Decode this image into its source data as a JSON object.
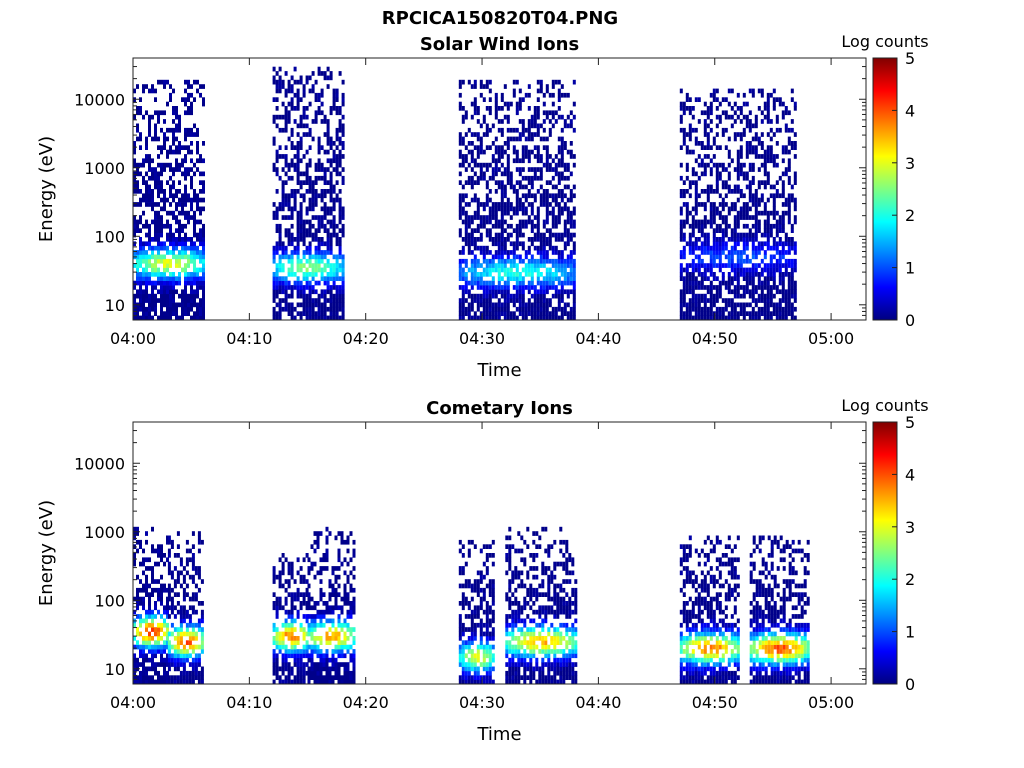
{
  "figure_title": "RPCICA150820T04.PNG",
  "colormap": [
    "#000080",
    "#0000ff",
    "#0080ff",
    "#00ffff",
    "#80ff80",
    "#ffff00",
    "#ff8000",
    "#ff0000",
    "#800000"
  ],
  "chart_data": [
    {
      "type": "heatmap",
      "title": "Solar Wind Ions",
      "xlabel": "Time",
      "ylabel": "Energy (eV)",
      "ylog": true,
      "ylim": [
        6,
        40000
      ],
      "xlim": [
        "04:00",
        "05:03"
      ],
      "xticks": [
        "04:00",
        "04:10",
        "04:20",
        "04:30",
        "04:40",
        "04:50",
        "05:00"
      ],
      "yticks": [
        "10",
        "100",
        "1000",
        "10000"
      ],
      "colorbar": {
        "label": "Log counts",
        "range": [
          0,
          5
        ],
        "ticks": [
          "0",
          "1",
          "2",
          "3",
          "4",
          "5"
        ]
      },
      "bursts": [
        {
          "start": "04:00",
          "end": "04:06",
          "emin": 6,
          "emax": 20000,
          "peak_log_counts": 3.0,
          "peak_energy": 40
        },
        {
          "start": "04:12",
          "end": "04:18",
          "emin": 6,
          "emax": 30000,
          "peak_log_counts": 2.5,
          "peak_energy": 35
        },
        {
          "start": "04:28",
          "end": "04:38",
          "emin": 6,
          "emax": 20000,
          "peak_log_counts": 2.0,
          "peak_energy": 30
        },
        {
          "start": "04:47",
          "end": "04:57",
          "emin": 6,
          "emax": 15000,
          "peak_log_counts": 1.0,
          "peak_energy": 50
        }
      ]
    },
    {
      "type": "heatmap",
      "title": "Cometary Ions",
      "xlabel": "Time",
      "ylabel": "Energy (eV)",
      "ylog": true,
      "ylim": [
        6,
        40000
      ],
      "xlim": [
        "04:00",
        "05:03"
      ],
      "xticks": [
        "04:00",
        "04:10",
        "04:20",
        "04:30",
        "04:40",
        "04:50",
        "05:00"
      ],
      "yticks": [
        "10",
        "100",
        "1000",
        "10000"
      ],
      "colorbar": {
        "label": "Log counts",
        "range": [
          0,
          5
        ],
        "ticks": [
          "0",
          "1",
          "2",
          "3",
          "4",
          "5"
        ]
      },
      "bursts": [
        {
          "start": "04:00",
          "end": "04:03",
          "emin": 6,
          "emax": 1200,
          "peak_log_counts": 4.2,
          "peak_energy": 35
        },
        {
          "start": "04:03",
          "end": "04:06",
          "emin": 6,
          "emax": 1000,
          "peak_log_counts": 4.0,
          "peak_energy": 25
        },
        {
          "start": "04:12",
          "end": "04:15",
          "emin": 6,
          "emax": 500,
          "peak_log_counts": 3.8,
          "peak_energy": 30
        },
        {
          "start": "04:15",
          "end": "04:19",
          "emin": 6,
          "emax": 1200,
          "peak_log_counts": 3.6,
          "peak_energy": 30
        },
        {
          "start": "04:28",
          "end": "04:31",
          "emin": 6,
          "emax": 800,
          "peak_log_counts": 3.0,
          "peak_energy": 15
        },
        {
          "start": "04:32",
          "end": "04:38",
          "emin": 6,
          "emax": 1200,
          "peak_log_counts": 3.5,
          "peak_energy": 25
        },
        {
          "start": "04:47",
          "end": "04:52",
          "emin": 6,
          "emax": 900,
          "peak_log_counts": 3.8,
          "peak_energy": 20
        },
        {
          "start": "04:53",
          "end": "04:58",
          "emin": 6,
          "emax": 900,
          "peak_log_counts": 4.0,
          "peak_energy": 20
        }
      ]
    }
  ]
}
